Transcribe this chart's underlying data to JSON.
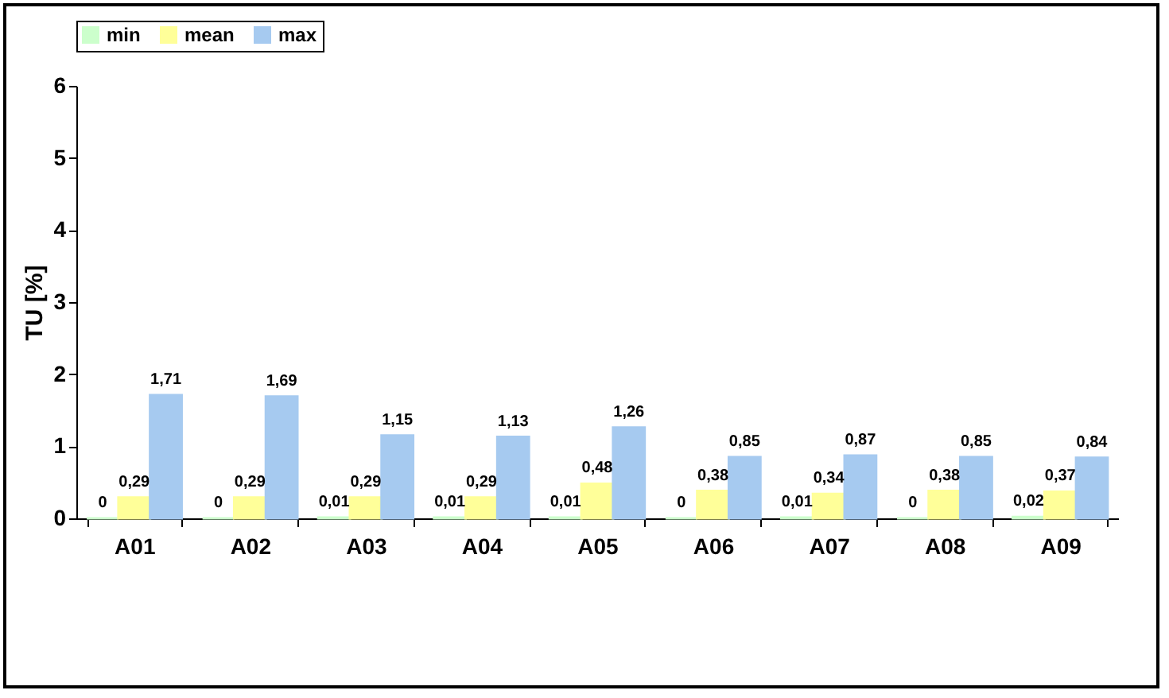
{
  "chart_data": {
    "type": "bar",
    "ylabel": "TU [%]",
    "categories": [
      "A01",
      "A02",
      "A03",
      "A04",
      "A05",
      "A06",
      "A07",
      "A08",
      "A09"
    ],
    "series": [
      {
        "name": "min",
        "color": "#ccffcc",
        "values": [
          0,
          0,
          0.01,
          0.01,
          0.01,
          0,
          0.01,
          0,
          0.02
        ],
        "value_labels": [
          "0",
          "0",
          "0,01",
          "0,01",
          "0,01",
          "0",
          "0,01",
          "0",
          "0,02"
        ]
      },
      {
        "name": "mean",
        "color": "#ffff99",
        "values": [
          0.29,
          0.29,
          0.29,
          0.29,
          0.48,
          0.38,
          0.34,
          0.38,
          0.37
        ],
        "value_labels": [
          "0,29",
          "0,29",
          "0,29",
          "0,29",
          "0,48",
          "0,38",
          "0,34",
          "0,38",
          "0,37"
        ]
      },
      {
        "name": "max",
        "color": "#a6caf0",
        "values": [
          1.71,
          1.69,
          1.15,
          1.13,
          1.26,
          0.85,
          0.87,
          0.85,
          0.84
        ],
        "value_labels": [
          "1,71",
          "1,69",
          "1,15",
          "1,13",
          "1,26",
          "0,85",
          "0,87",
          "0,85",
          "0,84"
        ]
      }
    ],
    "ylim": [
      0,
      6
    ],
    "yticks": [
      0,
      1,
      2,
      3,
      4,
      5,
      6
    ],
    "grid": false,
    "legend": "top"
  }
}
